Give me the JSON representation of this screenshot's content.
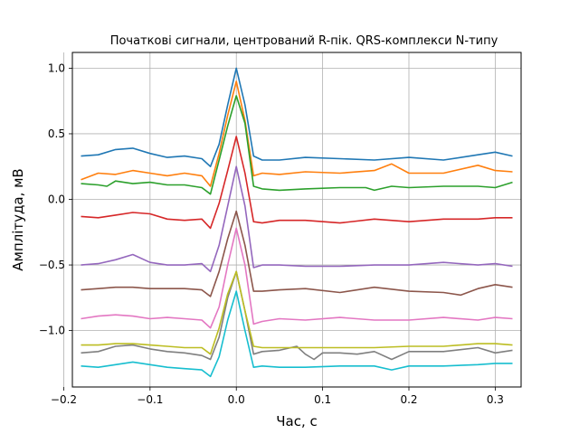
{
  "chart_data": {
    "type": "line",
    "title": "Початкові сигнали, центрований R-пік. QRS-комплекси N-типу",
    "xlabel": "Час, с",
    "ylabel": "Амплітуда, мВ",
    "xlim": [
      -0.19,
      0.33
    ],
    "ylim": [
      -1.43,
      1.12
    ],
    "xticks": [
      -0.2,
      -0.1,
      0.0,
      0.1,
      0.2,
      0.3
    ],
    "xtick_labels": [
      "−0.2",
      "−0.1",
      "0.0",
      "0.1",
      "0.2",
      "0.3"
    ],
    "yticks": [
      1.0,
      0.5,
      0.0,
      -0.5,
      -1.0
    ],
    "ytick_labels": [
      "1.0",
      "0.5",
      "0.0",
      "−0.5",
      "−1.0"
    ],
    "grid": true,
    "series": [
      {
        "color": "#1f77b4",
        "x": [
          -0.18,
          -0.16,
          -0.14,
          -0.12,
          -0.1,
          -0.08,
          -0.06,
          -0.04,
          -0.03,
          -0.02,
          -0.01,
          0.0,
          0.01,
          0.02,
          0.03,
          0.05,
          0.08,
          0.12,
          0.16,
          0.2,
          0.24,
          0.28,
          0.3,
          0.32
        ],
        "y": [
          0.33,
          0.34,
          0.38,
          0.39,
          0.35,
          0.32,
          0.33,
          0.31,
          0.25,
          0.42,
          0.72,
          1.0,
          0.72,
          0.33,
          0.3,
          0.3,
          0.32,
          0.31,
          0.3,
          0.32,
          0.3,
          0.34,
          0.36,
          0.33
        ]
      },
      {
        "color": "#ff7f0e",
        "x": [
          -0.18,
          -0.16,
          -0.14,
          -0.12,
          -0.1,
          -0.08,
          -0.06,
          -0.04,
          -0.03,
          -0.02,
          -0.01,
          0.0,
          0.01,
          0.02,
          0.03,
          0.05,
          0.08,
          0.12,
          0.16,
          0.18,
          0.2,
          0.24,
          0.28,
          0.3,
          0.32
        ],
        "y": [
          0.15,
          0.2,
          0.19,
          0.22,
          0.2,
          0.18,
          0.2,
          0.18,
          0.1,
          0.35,
          0.64,
          0.9,
          0.6,
          0.18,
          0.2,
          0.19,
          0.21,
          0.2,
          0.22,
          0.27,
          0.2,
          0.2,
          0.26,
          0.22,
          0.21
        ]
      },
      {
        "color": "#2ca02c",
        "x": [
          -0.18,
          -0.16,
          -0.15,
          -0.14,
          -0.12,
          -0.1,
          -0.08,
          -0.06,
          -0.04,
          -0.03,
          -0.02,
          -0.01,
          0.0,
          0.01,
          0.02,
          0.03,
          0.05,
          0.08,
          0.12,
          0.15,
          0.16,
          0.18,
          0.2,
          0.24,
          0.28,
          0.3,
          0.32
        ],
        "y": [
          0.12,
          0.11,
          0.1,
          0.14,
          0.12,
          0.13,
          0.11,
          0.11,
          0.09,
          0.04,
          0.3,
          0.56,
          0.79,
          0.58,
          0.1,
          0.08,
          0.07,
          0.08,
          0.09,
          0.09,
          0.07,
          0.1,
          0.09,
          0.1,
          0.1,
          0.09,
          0.13
        ]
      },
      {
        "color": "#d62728",
        "x": [
          -0.18,
          -0.16,
          -0.14,
          -0.12,
          -0.1,
          -0.08,
          -0.06,
          -0.04,
          -0.03,
          -0.02,
          -0.01,
          0.0,
          0.01,
          0.02,
          0.03,
          0.05,
          0.08,
          0.12,
          0.16,
          0.2,
          0.24,
          0.28,
          0.3,
          0.32
        ],
        "y": [
          -0.13,
          -0.14,
          -0.12,
          -0.1,
          -0.11,
          -0.15,
          -0.16,
          -0.15,
          -0.22,
          -0.03,
          0.22,
          0.48,
          0.2,
          -0.17,
          -0.18,
          -0.16,
          -0.16,
          -0.18,
          -0.15,
          -0.17,
          -0.15,
          -0.15,
          -0.14,
          -0.14
        ]
      },
      {
        "color": "#9467bd",
        "x": [
          -0.18,
          -0.16,
          -0.14,
          -0.12,
          -0.1,
          -0.08,
          -0.06,
          -0.04,
          -0.03,
          -0.02,
          -0.01,
          0.0,
          0.01,
          0.02,
          0.03,
          0.05,
          0.08,
          0.12,
          0.16,
          0.2,
          0.24,
          0.28,
          0.3,
          0.32
        ],
        "y": [
          -0.5,
          -0.49,
          -0.46,
          -0.42,
          -0.48,
          -0.5,
          -0.5,
          -0.49,
          -0.55,
          -0.35,
          -0.05,
          0.25,
          -0.05,
          -0.52,
          -0.5,
          -0.5,
          -0.51,
          -0.51,
          -0.5,
          -0.5,
          -0.48,
          -0.5,
          -0.49,
          -0.51
        ]
      },
      {
        "color": "#8c564b",
        "x": [
          -0.18,
          -0.16,
          -0.14,
          -0.12,
          -0.1,
          -0.08,
          -0.06,
          -0.04,
          -0.03,
          -0.02,
          -0.01,
          0.0,
          0.01,
          0.02,
          0.03,
          0.05,
          0.08,
          0.12,
          0.16,
          0.2,
          0.24,
          0.26,
          0.28,
          0.3,
          0.32
        ],
        "y": [
          -0.69,
          -0.68,
          -0.67,
          -0.67,
          -0.68,
          -0.68,
          -0.68,
          -0.69,
          -0.74,
          -0.55,
          -0.3,
          -0.09,
          -0.35,
          -0.7,
          -0.7,
          -0.69,
          -0.68,
          -0.71,
          -0.67,
          -0.7,
          -0.71,
          -0.73,
          -0.68,
          -0.65,
          -0.67
        ]
      },
      {
        "color": "#e377c2",
        "x": [
          -0.18,
          -0.16,
          -0.14,
          -0.12,
          -0.1,
          -0.08,
          -0.06,
          -0.04,
          -0.03,
          -0.02,
          -0.01,
          0.0,
          0.01,
          0.02,
          0.03,
          0.05,
          0.08,
          0.12,
          0.16,
          0.2,
          0.24,
          0.28,
          0.3,
          0.32
        ],
        "y": [
          -0.91,
          -0.89,
          -0.88,
          -0.89,
          -0.91,
          -0.9,
          -0.91,
          -0.92,
          -0.98,
          -0.82,
          -0.5,
          -0.22,
          -0.5,
          -0.95,
          -0.93,
          -0.91,
          -0.92,
          -0.9,
          -0.92,
          -0.92,
          -0.9,
          -0.92,
          -0.9,
          -0.91
        ]
      },
      {
        "color": "#7f7f7f",
        "x": [
          -0.18,
          -0.16,
          -0.14,
          -0.12,
          -0.1,
          -0.08,
          -0.06,
          -0.04,
          -0.03,
          -0.02,
          -0.01,
          0.0,
          0.01,
          0.02,
          0.03,
          0.05,
          0.07,
          0.08,
          0.09,
          0.1,
          0.12,
          0.14,
          0.16,
          0.18,
          0.2,
          0.24,
          0.28,
          0.3,
          0.32
        ],
        "y": [
          -1.17,
          -1.16,
          -1.12,
          -1.11,
          -1.14,
          -1.16,
          -1.17,
          -1.19,
          -1.22,
          -1.05,
          -0.75,
          -0.55,
          -0.85,
          -1.18,
          -1.16,
          -1.15,
          -1.12,
          -1.18,
          -1.22,
          -1.17,
          -1.17,
          -1.18,
          -1.16,
          -1.22,
          -1.16,
          -1.16,
          -1.13,
          -1.17,
          -1.15
        ]
      },
      {
        "color": "#bcbd22",
        "x": [
          -0.18,
          -0.16,
          -0.14,
          -0.12,
          -0.1,
          -0.08,
          -0.06,
          -0.04,
          -0.03,
          -0.02,
          -0.01,
          0.0,
          0.01,
          0.02,
          0.03,
          0.05,
          0.08,
          0.12,
          0.16,
          0.2,
          0.24,
          0.28,
          0.3,
          0.32
        ],
        "y": [
          -1.11,
          -1.11,
          -1.1,
          -1.1,
          -1.11,
          -1.12,
          -1.13,
          -1.13,
          -1.18,
          -0.98,
          -0.72,
          -0.55,
          -0.85,
          -1.12,
          -1.13,
          -1.13,
          -1.13,
          -1.13,
          -1.13,
          -1.12,
          -1.12,
          -1.1,
          -1.1,
          -1.11
        ]
      },
      {
        "color": "#17becf",
        "x": [
          -0.18,
          -0.16,
          -0.14,
          -0.12,
          -0.1,
          -0.08,
          -0.06,
          -0.04,
          -0.03,
          -0.02,
          -0.01,
          0.0,
          0.01,
          0.02,
          0.03,
          0.05,
          0.08,
          0.12,
          0.16,
          0.18,
          0.2,
          0.24,
          0.28,
          0.3,
          0.32
        ],
        "y": [
          -1.27,
          -1.28,
          -1.26,
          -1.24,
          -1.26,
          -1.28,
          -1.29,
          -1.3,
          -1.35,
          -1.2,
          -0.92,
          -0.7,
          -1.0,
          -1.28,
          -1.27,
          -1.28,
          -1.28,
          -1.27,
          -1.27,
          -1.3,
          -1.27,
          -1.27,
          -1.26,
          -1.25,
          -1.25
        ]
      }
    ]
  }
}
